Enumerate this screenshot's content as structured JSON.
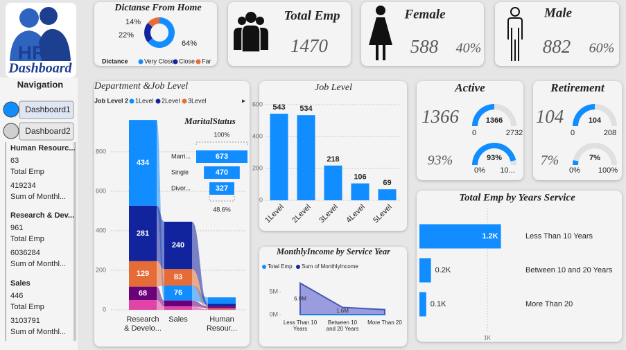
{
  "logo": {
    "title": "HR",
    "subtitle": "Dashboard"
  },
  "navigation": {
    "title": "Navigation",
    "buttons": [
      "Dashboard1",
      "Dashboard2"
    ],
    "departments": [
      {
        "name": "Human Resourc...",
        "total_emp": 63,
        "total_emp_label": "Total Emp",
        "income": 419234,
        "income_label": "Sum of Monthl..."
      },
      {
        "name": "Research & Dev...",
        "total_emp": 961,
        "total_emp_label": "Total Emp",
        "income": 6036284,
        "income_label": "Sum of Monthl..."
      },
      {
        "name": "Sales",
        "total_emp": 446,
        "total_emp_label": "Total Emp",
        "income": 3103791,
        "income_label": "Sum of Monthl..."
      }
    ]
  },
  "cards": [
    {
      "title": "Total Emp",
      "value": 1470
    },
    {
      "title": "Female",
      "value": 588,
      "share": {
        "value": 40,
        "label": "40%"
      }
    },
    {
      "title": "Male",
      "value": 882,
      "share": {
        "value": 60,
        "label": "60%"
      }
    }
  ],
  "chart_data": [
    {
      "type": "donut",
      "title": "Dictanse From Home",
      "legend_title": "Dictance",
      "categories": [
        "Very Close",
        "Close",
        "Far"
      ],
      "values": [
        64,
        22,
        14
      ],
      "value_labels": [
        "64%",
        "22%",
        "14%"
      ],
      "colors": [
        "#118dff",
        "#12239e",
        "#e66c37"
      ]
    },
    {
      "type": "ribbon",
      "title": "Department &Job Level",
      "legend_title": "Job Level 2",
      "categories": [
        "Research & Develo...",
        "Sales",
        "Human Resour..."
      ],
      "series": [
        {
          "name": "1Level",
          "color": "#118dff",
          "values": [
            434,
            76,
            33
          ]
        },
        {
          "name": "2Level",
          "color": "#12239e",
          "values": [
            281,
            240,
            13
          ]
        },
        {
          "name": "3Level",
          "color": "#e66c37",
          "values": [
            129,
            83,
            6
          ]
        },
        {
          "color": "#6b007b",
          "values": [
            68,
            30,
            8
          ]
        },
        {
          "color": "#e044a7",
          "values": [
            49,
            17,
            3
          ]
        }
      ],
      "ylim": [
        0,
        1000
      ],
      "yticks": [
        0,
        200,
        400,
        600,
        800
      ],
      "grid": true
    },
    {
      "type": "funnel",
      "title": "MaritalStatus",
      "categories": [
        "Marri...",
        "Single",
        "Divor..."
      ],
      "values": [
        673,
        470,
        327
      ],
      "top_label": "100%",
      "bottom_label": "48.6%",
      "color": "#118dff"
    },
    {
      "type": "bar",
      "title": "Job Level",
      "categories": [
        "1Level",
        "2Level",
        "3Level",
        "4Level",
        "5Level"
      ],
      "values": [
        543,
        534,
        218,
        106,
        69
      ],
      "color": "#118dff",
      "ylim": [
        0,
        600
      ],
      "yticks": [
        0,
        200,
        400,
        600
      ],
      "grid": true
    },
    {
      "type": "area",
      "title": "MonthlyIncome by Service Year",
      "categories": [
        "Less Than 10 Years",
        "Between 10 and 20 Years",
        "More Than 20"
      ],
      "series": [
        {
          "name": "Total Emp",
          "color": "#118dff",
          "values": [
            1200,
            170,
            100
          ]
        },
        {
          "name": "Sum of MonthlyIncome",
          "color": "#12239e",
          "values": [
            6900000,
            1600000,
            1100000
          ],
          "value_labels": [
            "6.9M",
            "1.6M",
            null
          ]
        }
      ],
      "ylim": [
        0,
        7500000
      ],
      "yticks": [
        {
          "value": 0,
          "label": "0M"
        },
        {
          "value": 5000000,
          "label": "5M"
        }
      ]
    },
    {
      "type": "hbar",
      "title": "Total Emp by Years Service",
      "categories": [
        "Less Than 10 Years",
        "Between 10 and 20 Years",
        "More Than 20"
      ],
      "values": [
        1200,
        170,
        100
      ],
      "value_labels": [
        "1.2K",
        "0.2K",
        "0.1K"
      ],
      "color": "#118dff",
      "xlim": [
        0,
        1250
      ],
      "xticks": [
        {
          "value": 1000,
          "label": "1K"
        }
      ],
      "grid": true
    },
    {
      "type": "gauge",
      "title": "Active",
      "value": 1366,
      "range": [
        0,
        2732
      ],
      "percent": {
        "value": 93,
        "label": "93%"
      },
      "percent_range": [
        {
          "value": 0,
          "label": "0%"
        },
        {
          "value": 100,
          "label": "10..."
        }
      ],
      "color": "#118dff"
    },
    {
      "type": "gauge",
      "title": "Retirement",
      "value": 104,
      "range": [
        0,
        208
      ],
      "percent": {
        "value": 7,
        "label": "7%"
      },
      "percent_range": [
        {
          "value": 0,
          "label": "0%"
        },
        {
          "value": 100,
          "label": "100%"
        }
      ],
      "color": "#118dff"
    }
  ]
}
